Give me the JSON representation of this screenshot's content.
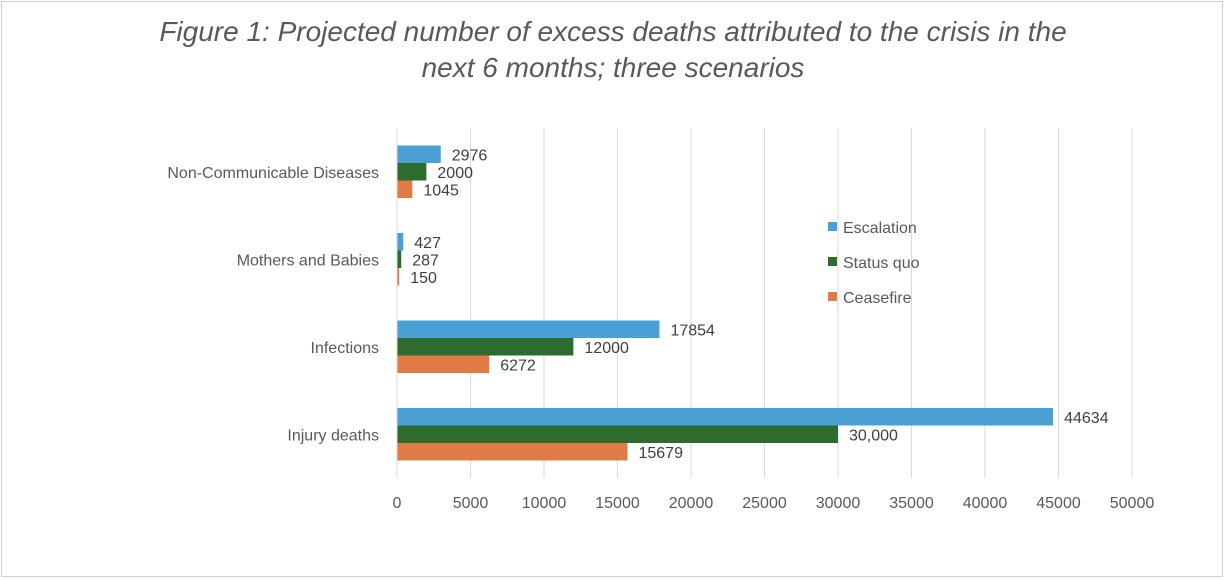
{
  "chart_data": {
    "type": "bar",
    "orientation": "horizontal",
    "title_line1": "Figure 1: Projected number of excess deaths attributed to the crisis in the",
    "title_line2": "next 6 months; three scenarios",
    "categories": [
      "Non-Communicable Diseases",
      "Mothers and Babies",
      "Infections",
      "Injury deaths"
    ],
    "series": [
      {
        "name": "Escalation",
        "color": "#4a9fd5",
        "values": [
          2976,
          427,
          17854,
          44634
        ],
        "labels": [
          "2976",
          "427",
          "17854",
          "44634"
        ]
      },
      {
        "name": "Status quo",
        "color": "#2e6b2e",
        "values": [
          2000,
          287,
          12000,
          30000
        ],
        "labels": [
          "2000",
          "287",
          "12000",
          "30,000"
        ]
      },
      {
        "name": "Ceasefire",
        "color": "#e07b45",
        "values": [
          1045,
          150,
          6272,
          15679
        ],
        "labels": [
          "1045",
          "150",
          "6272",
          "15679"
        ]
      }
    ],
    "xlim": [
      0,
      50000
    ],
    "xticks": [
      "0",
      "5000",
      "10000",
      "15000",
      "20000",
      "25000",
      "30000",
      "35000",
      "40000",
      "45000",
      "50000"
    ],
    "grid": true,
    "legend_position": "right"
  }
}
